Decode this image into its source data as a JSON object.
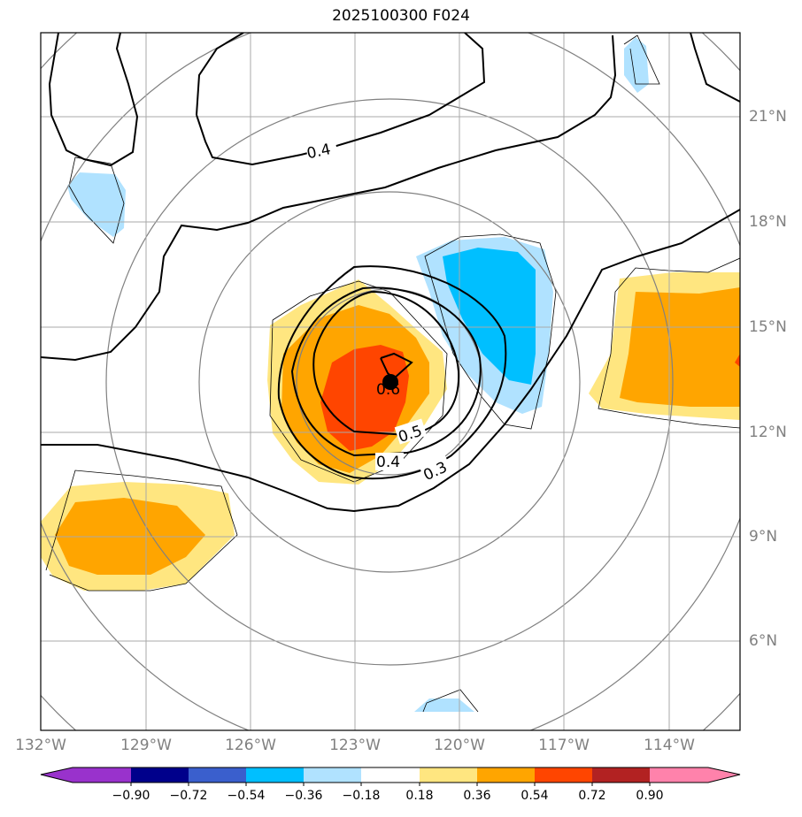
{
  "title": "2025100300 F024",
  "map": {
    "lon_labels": [
      "132°W",
      "129°W",
      "126°W",
      "123°W",
      "120°W",
      "117°W",
      "114°W"
    ],
    "lat_labels": [
      "21°N",
      "18°N",
      "15°N",
      "12°N",
      "9°N",
      "6°N"
    ],
    "contour_labels": [
      "0.4",
      "0.6",
      "0.5",
      "0.4",
      "0.3"
    ],
    "storm_center": {
      "lon": "122.1°W",
      "lat": "13.4°N"
    }
  },
  "colorbar": {
    "tick_labels": [
      "−0.90",
      "−0.72",
      "−0.54",
      "−0.36",
      "−0.18",
      "0.18",
      "0.36",
      "0.54",
      "0.72",
      "0.90"
    ],
    "colors": [
      "#9932cc",
      "#00008b",
      "#3a5fcd",
      "#00bfff",
      "#b0e2ff",
      "#ffffff",
      "#ffe680",
      "#ffa500",
      "#ff4500",
      "#b22222",
      "#ff82ab"
    ]
  }
}
